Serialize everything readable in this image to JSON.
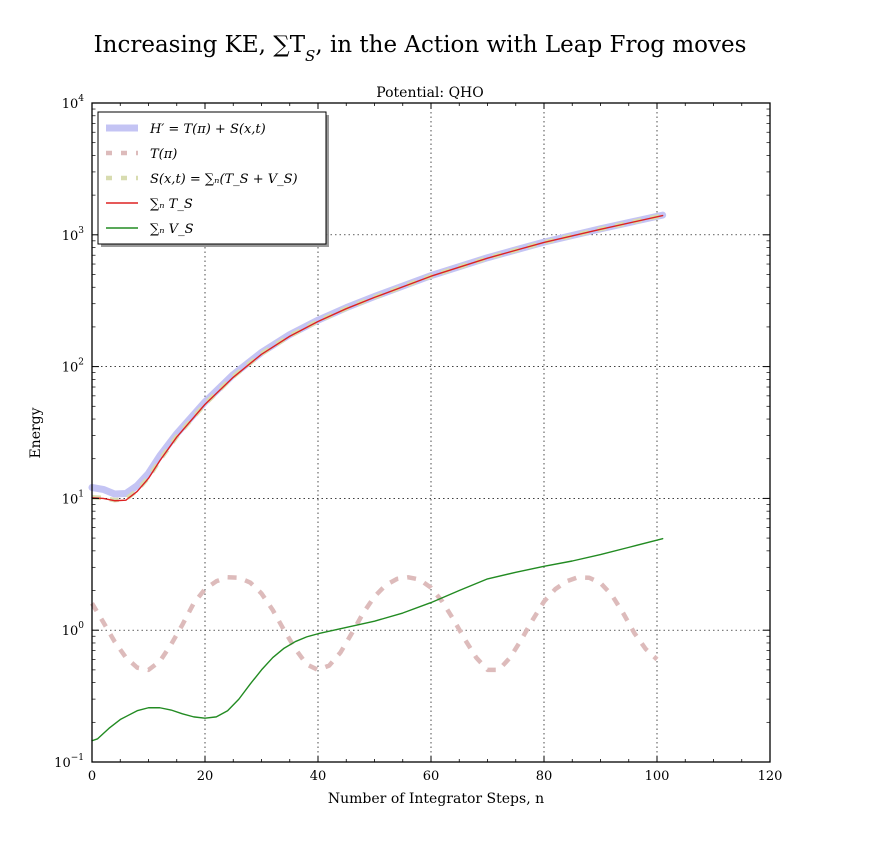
{
  "figure": {
    "suptitle": "Increasing KE, ∑T_S, in the Action with Leap Frog moves"
  },
  "chart_data": {
    "type": "line",
    "title": "Potential: QHO",
    "xlabel": "Number of Integrator Steps, n",
    "ylabel": "Energy",
    "xlim": [
      0,
      120
    ],
    "ylim": [
      0.1,
      10000
    ],
    "yscale": "log",
    "grid": true,
    "legend_position": "top-left",
    "x_ticks": [
      {
        "value": 0,
        "label": "0"
      },
      {
        "value": 20,
        "label": "20"
      },
      {
        "value": 40,
        "label": "40"
      },
      {
        "value": 60,
        "label": "60"
      },
      {
        "value": 80,
        "label": "80"
      },
      {
        "value": 100,
        "label": "100"
      },
      {
        "value": 120,
        "label": "120"
      }
    ],
    "y_ticks": [
      {
        "value": 0.1,
        "base": "10",
        "exp": "−1"
      },
      {
        "value": 1,
        "base": "10",
        "exp": "0"
      },
      {
        "value": 10,
        "base": "10",
        "exp": "1"
      },
      {
        "value": 100,
        "base": "10",
        "exp": "2"
      },
      {
        "value": 1000,
        "base": "10",
        "exp": "3"
      },
      {
        "value": 10000,
        "base": "10",
        "exp": "4"
      }
    ],
    "series": [
      {
        "name": "H′ = T(π) + S(x,t)",
        "color": "#c4c4f4",
        "style": "thick",
        "x": [
          0,
          2,
          4,
          6,
          8,
          10,
          12,
          15,
          20,
          25,
          30,
          35,
          40,
          45,
          50,
          60,
          70,
          80,
          90,
          101
        ],
        "y": [
          12.1,
          11.7,
          10.8,
          10.9,
          12.5,
          15.5,
          21,
          31,
          54,
          87,
          128,
          175,
          225,
          280,
          340,
          490,
          670,
          880,
          1110,
          1410
        ]
      },
      {
        "name": "T(π)",
        "color": "#ddbbbb",
        "style": "dashed",
        "x": [
          0,
          2,
          4,
          6,
          8,
          10,
          12,
          14,
          16,
          18,
          20,
          22,
          24,
          26,
          28,
          30,
          32,
          34,
          36,
          38,
          40,
          42,
          44,
          46,
          48,
          50,
          52,
          54,
          56,
          58,
          60,
          62,
          64,
          66,
          68,
          70,
          72,
          74,
          76,
          78,
          80,
          82,
          84,
          86,
          88,
          90,
          92,
          94,
          96,
          98,
          100
        ],
        "y": [
          1.6,
          1.15,
          0.82,
          0.62,
          0.52,
          0.5,
          0.58,
          0.78,
          1.1,
          1.6,
          2.05,
          2.35,
          2.52,
          2.5,
          2.3,
          1.9,
          1.42,
          1.0,
          0.72,
          0.55,
          0.5,
          0.54,
          0.68,
          0.95,
          1.35,
          1.8,
          2.2,
          2.45,
          2.52,
          2.42,
          2.1,
          1.65,
          1.2,
          0.85,
          0.62,
          0.5,
          0.5,
          0.62,
          0.85,
          1.2,
          1.65,
          2.05,
          2.35,
          2.52,
          2.5,
          2.28,
          1.85,
          1.35,
          0.95,
          0.72,
          0.6
        ]
      },
      {
        "name": "S(x,t) = ∑ₙ(T_S + V_S)",
        "color": "#d8dcb0",
        "style": "dashed",
        "x": [
          0,
          2,
          4,
          6,
          8,
          10,
          12,
          15,
          20,
          25,
          30,
          35,
          40,
          45,
          50,
          60,
          70,
          80,
          90,
          101
        ],
        "y": [
          10.2,
          10.1,
          9.7,
          9.9,
          11.5,
          14.4,
          19.5,
          29.5,
          52,
          84,
          125,
          171,
          221,
          276,
          336,
          486,
          666,
          876,
          1105,
          1405
        ]
      },
      {
        "name": "∑ₙ T_S",
        "color": "#dd2222",
        "style": "solid",
        "x": [
          0,
          2,
          4,
          6,
          8,
          10,
          12,
          15,
          20,
          25,
          30,
          35,
          40,
          45,
          50,
          60,
          70,
          80,
          90,
          101
        ],
        "y": [
          10.1,
          10.0,
          9.6,
          9.7,
          11.3,
          14.2,
          19.3,
          29.2,
          51.7,
          83,
          124,
          170,
          220,
          275,
          335,
          485,
          665,
          875,
          1100,
          1400
        ]
      },
      {
        "name": "∑ₙ V_S",
        "color": "#228b22",
        "style": "solid",
        "x": [
          0,
          1,
          3,
          5,
          8,
          10,
          12,
          14,
          16,
          18,
          20,
          22,
          24,
          26,
          28,
          30,
          32,
          34,
          36,
          38,
          40,
          45,
          50,
          55,
          60,
          65,
          70,
          75,
          80,
          85,
          90,
          95,
          101
        ],
        "y": [
          0.145,
          0.15,
          0.18,
          0.21,
          0.245,
          0.258,
          0.258,
          0.248,
          0.232,
          0.22,
          0.215,
          0.22,
          0.245,
          0.3,
          0.39,
          0.5,
          0.62,
          0.73,
          0.82,
          0.89,
          0.94,
          1.05,
          1.17,
          1.35,
          1.62,
          2.0,
          2.45,
          2.75,
          3.05,
          3.35,
          3.75,
          4.25,
          4.95
        ]
      }
    ]
  }
}
